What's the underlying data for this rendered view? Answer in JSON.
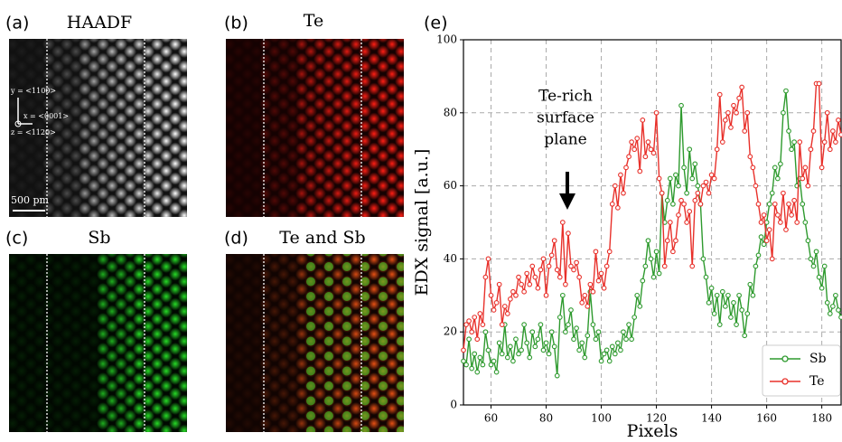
{
  "panels": [
    {
      "label": "(a)",
      "title": "HAADF",
      "axes": [
        "y = <1100>",
        "x = <0001>",
        "z = <1120>"
      ],
      "scale_bar": "500 pm"
    },
    {
      "label": "(b)",
      "title": "Te"
    },
    {
      "label": "(c)",
      "title": "Sb"
    },
    {
      "label": "(d)",
      "title": "Te and Sb"
    }
  ],
  "chart_data": {
    "type": "line",
    "label": "(e)",
    "xlabel": "Pixels",
    "ylabel": "EDX signal [a.u.]",
    "annotation": [
      "Te-rich",
      "surface",
      "plane"
    ],
    "x": [
      50,
      51,
      52,
      53,
      54,
      55,
      56,
      57,
      58,
      59,
      60,
      61,
      62,
      63,
      64,
      65,
      66,
      67,
      68,
      69,
      70,
      71,
      72,
      73,
      74,
      75,
      76,
      77,
      78,
      79,
      80,
      81,
      82,
      83,
      84,
      85,
      86,
      87,
      88,
      89,
      90,
      91,
      92,
      93,
      94,
      95,
      96,
      97,
      98,
      99,
      100,
      101,
      102,
      103,
      104,
      105,
      106,
      107,
      108,
      109,
      110,
      111,
      112,
      113,
      114,
      115,
      116,
      117,
      118,
      119,
      120,
      121,
      122,
      123,
      124,
      125,
      126,
      127,
      128,
      129,
      130,
      131,
      132,
      133,
      134,
      135,
      136,
      137,
      138,
      139,
      140,
      141,
      142,
      143,
      144,
      145,
      146,
      147,
      148,
      149,
      150,
      151,
      152,
      153,
      154,
      155,
      156,
      157,
      158,
      159,
      160,
      161,
      162,
      163,
      164,
      165,
      166,
      167,
      168,
      169,
      170,
      171,
      172,
      173,
      174,
      175,
      176,
      177,
      178,
      179,
      180,
      181,
      182,
      183,
      184,
      185,
      186,
      187
    ],
    "series": [
      {
        "name": "Sb",
        "color": "#2e9a2e",
        "values": [
          12,
          11,
          18,
          10,
          14,
          9,
          13,
          11,
          20,
          15,
          11,
          12,
          9,
          17,
          14,
          22,
          13,
          16,
          12,
          18,
          14,
          15,
          22,
          17,
          13,
          20,
          16,
          18,
          22,
          15,
          17,
          14,
          20,
          16,
          8,
          24,
          30,
          20,
          22,
          26,
          18,
          21,
          15,
          17,
          13,
          19,
          31,
          22,
          18,
          20,
          12,
          14,
          15,
          12,
          16,
          14,
          17,
          15,
          20,
          18,
          22,
          18,
          24,
          30,
          27,
          34,
          38,
          45,
          40,
          35,
          42,
          36,
          58,
          50,
          56,
          62,
          55,
          63,
          60,
          82,
          65,
          58,
          70,
          62,
          66,
          60,
          55,
          40,
          35,
          28,
          32,
          25,
          30,
          22,
          31,
          27,
          30,
          24,
          28,
          22,
          30,
          26,
          19,
          25,
          33,
          30,
          38,
          41,
          46,
          44,
          50,
          55,
          58,
          65,
          62,
          66,
          80,
          86,
          75,
          70,
          72,
          60,
          62,
          55,
          50,
          45,
          40,
          38,
          42,
          35,
          32,
          38,
          28,
          25,
          27,
          30,
          26,
          24
        ]
      },
      {
        "name": "Te",
        "color": "#e8302a",
        "values": [
          15,
          22,
          23,
          20,
          24,
          18,
          25,
          22,
          35,
          40,
          30,
          26,
          28,
          33,
          22,
          27,
          25,
          29,
          31,
          30,
          35,
          33,
          31,
          36,
          33,
          38,
          35,
          32,
          37,
          40,
          30,
          38,
          41,
          45,
          37,
          35,
          50,
          33,
          47,
          38,
          37,
          39,
          35,
          28,
          30,
          27,
          33,
          31,
          42,
          34,
          36,
          32,
          38,
          42,
          55,
          60,
          54,
          63,
          58,
          65,
          68,
          72,
          70,
          73,
          64,
          78,
          68,
          72,
          70,
          69,
          80,
          62,
          58,
          38,
          45,
          50,
          42,
          45,
          52,
          56,
          55,
          50,
          53,
          38,
          56,
          58,
          55,
          60,
          61,
          58,
          63,
          62,
          70,
          85,
          72,
          78,
          80,
          76,
          82,
          80,
          84,
          87,
          75,
          80,
          68,
          65,
          60,
          55,
          50,
          52,
          45,
          48,
          40,
          55,
          52,
          50,
          58,
          48,
          55,
          52,
          56,
          50,
          72,
          62,
          65,
          60,
          70,
          75,
          88,
          88,
          65,
          72,
          80,
          70,
          75,
          72,
          78,
          74
        ]
      }
    ],
    "xlim": [
      50,
      187
    ],
    "ylim": [
      0,
      100
    ],
    "xticks": [
      60,
      80,
      100,
      120,
      140,
      160,
      180
    ],
    "yticks": [
      0,
      20,
      40,
      60,
      80,
      100
    ],
    "grid": true,
    "legend": "lower right"
  }
}
